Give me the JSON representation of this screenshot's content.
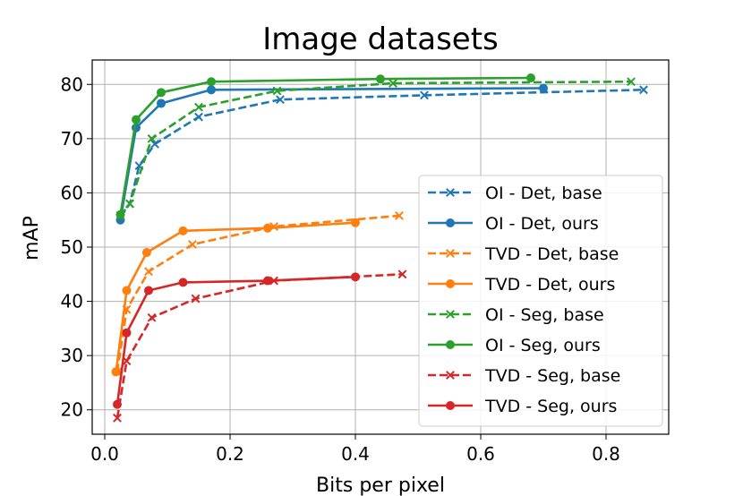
{
  "chart_data": {
    "type": "line",
    "title": "Image datasets",
    "xlabel": "Bits per pixel",
    "ylabel": "mAP",
    "xlim": [
      -0.02,
      0.9
    ],
    "ylim": [
      15.5,
      84.5
    ],
    "xticks": [
      0.0,
      0.2,
      0.4,
      0.6,
      0.8
    ],
    "xtick_labels": [
      "0.0",
      "0.2",
      "0.4",
      "0.6",
      "0.8"
    ],
    "yticks": [
      20,
      30,
      40,
      50,
      60,
      70,
      80
    ],
    "ytick_labels": [
      "20",
      "30",
      "40",
      "50",
      "60",
      "70",
      "80"
    ],
    "grid": true,
    "legend_position": "right",
    "series": [
      {
        "name": "OI - Det, base",
        "color": "#1f77b4",
        "style": "dashed",
        "marker": "x",
        "x": [
          0.025,
          0.04,
          0.055,
          0.08,
          0.15,
          0.28,
          0.51,
          0.86
        ],
        "y": [
          55.5,
          58,
          65,
          69,
          74,
          77.2,
          78,
          79
        ]
      },
      {
        "name": "OI - Det, ours",
        "color": "#1f77b4",
        "style": "solid",
        "marker": "o",
        "x": [
          0.025,
          0.05,
          0.09,
          0.17,
          0.7
        ],
        "y": [
          55,
          72,
          76.5,
          79,
          79.3
        ]
      },
      {
        "name": "TVD - Det, base",
        "color": "#ff7f0e",
        "style": "dashed",
        "marker": "x",
        "x": [
          0.02,
          0.035,
          0.07,
          0.14,
          0.27,
          0.47
        ],
        "y": [
          27,
          38.5,
          45.5,
          50.5,
          53.8,
          55.8
        ]
      },
      {
        "name": "TVD - Det, ours",
        "color": "#ff7f0e",
        "style": "solid",
        "marker": "o",
        "x": [
          0.018,
          0.035,
          0.067,
          0.125,
          0.26,
          0.4
        ],
        "y": [
          27,
          42,
          49,
          53,
          53.5,
          54.5
        ]
      },
      {
        "name": "OI - Seg, base",
        "color": "#2ca02c",
        "style": "dashed",
        "marker": "x",
        "x": [
          0.025,
          0.04,
          0.075,
          0.15,
          0.275,
          0.46,
          0.84
        ],
        "y": [
          55.8,
          58,
          70,
          75.8,
          78.8,
          80.2,
          80.5
        ]
      },
      {
        "name": "OI - Seg, ours",
        "color": "#2ca02c",
        "style": "solid",
        "marker": "o",
        "x": [
          0.025,
          0.05,
          0.09,
          0.17,
          0.44,
          0.68
        ],
        "y": [
          56,
          73.5,
          78.5,
          80.5,
          81,
          81.2
        ]
      },
      {
        "name": "TVD - Seg, base",
        "color": "#d62728",
        "style": "dashed",
        "marker": "x",
        "x": [
          0.02,
          0.035,
          0.075,
          0.145,
          0.27,
          0.475
        ],
        "y": [
          18.5,
          29,
          37,
          40.5,
          43.8,
          45
        ]
      },
      {
        "name": "TVD - Seg, ours",
        "color": "#d62728",
        "style": "solid",
        "marker": "o",
        "x": [
          0.02,
          0.035,
          0.07,
          0.125,
          0.26,
          0.4
        ],
        "y": [
          21,
          34.2,
          42,
          43.5,
          43.8,
          44.5
        ]
      }
    ]
  }
}
